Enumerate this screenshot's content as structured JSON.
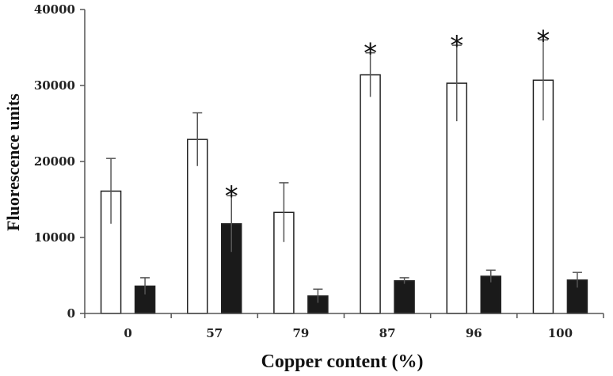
{
  "chart_data": {
    "type": "bar",
    "title": "",
    "xlabel": "Copper content (%)",
    "ylabel": "Fluorescence units",
    "categories": [
      "0",
      "57",
      "79",
      "87",
      "96",
      "100"
    ],
    "ylim": [
      0,
      40000
    ],
    "yticks": [
      0,
      10000,
      20000,
      30000,
      40000
    ],
    "ytick_labels": [
      "0",
      "10000",
      "20000",
      "30000",
      "40000"
    ],
    "grid": false,
    "legend": "none",
    "series": [
      {
        "color": "#ffffff",
        "values": [
          16100,
          22900,
          13300,
          31400,
          30300,
          30700
        ],
        "errors": [
          4300,
          3500,
          3900,
          2900,
          5000,
          5300
        ],
        "significant": [
          false,
          false,
          false,
          true,
          true,
          true
        ]
      },
      {
        "color": "#1a1a1a",
        "values": [
          3600,
          11800,
          2300,
          4300,
          4900,
          4400
        ],
        "errors": [
          1100,
          3700,
          900,
          400,
          800,
          1000
        ],
        "significant": [
          false,
          true,
          false,
          false,
          false,
          false
        ]
      }
    ],
    "significance_marker": "*"
  }
}
